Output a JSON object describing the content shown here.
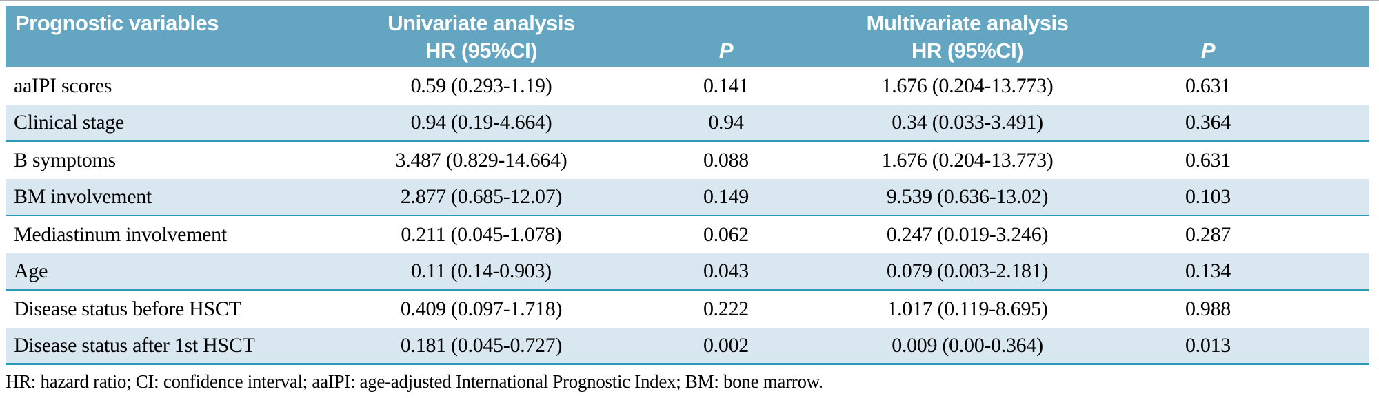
{
  "table": {
    "header": {
      "variables": "Prognostic variables",
      "univariate": "Univariate analysis",
      "multivariate": "Multivariate analysis",
      "hr": "HR (95%CI)",
      "p": "P"
    },
    "rows": [
      {
        "variable": "aaIPI scores",
        "uni_hr": "0.59 (0.293-1.19)",
        "uni_p": "0.141",
        "multi_hr": "1.676 (0.204-13.773)",
        "multi_p": "0.631"
      },
      {
        "variable": "Clinical stage",
        "uni_hr": "0.94 (0.19-4.664)",
        "uni_p": "0.94",
        "multi_hr": "0.34 (0.033-3.491)",
        "multi_p": "0.364"
      },
      {
        "variable": "B symptoms",
        "uni_hr": "3.487 (0.829-14.664)",
        "uni_p": "0.088",
        "multi_hr": "1.676 (0.204-13.773)",
        "multi_p": "0.631"
      },
      {
        "variable": "BM involvement",
        "uni_hr": "2.877 (0.685-12.07)",
        "uni_p": "0.149",
        "multi_hr": "9.539 (0.636-13.02)",
        "multi_p": "0.103"
      },
      {
        "variable": "Mediastinum involvement",
        "uni_hr": "0.211 (0.045-1.078)",
        "uni_p": "0.062",
        "multi_hr": "0.247 (0.019-3.246)",
        "multi_p": "0.287"
      },
      {
        "variable": "Age",
        "uni_hr": "0.11 (0.14-0.903)",
        "uni_p": "0.043",
        "multi_hr": "0.079 (0.003-2.181)",
        "multi_p": "0.134"
      },
      {
        "variable": "Disease status before HSCT",
        "uni_hr": "0.409 (0.097-1.718)",
        "uni_p": "0.222",
        "multi_hr": "1.017 (0.119-8.695)",
        "multi_p": "0.988"
      },
      {
        "variable": "Disease status after 1st HSCT",
        "uni_hr": "0.181 (0.045-0.727)",
        "uni_p": "0.002",
        "multi_hr": "0.009 (0.00-0.364)",
        "multi_p": "0.013"
      }
    ],
    "footnote": "HR: hazard ratio; CI: confidence interval; aaIPI: age-adjusted International Prognostic Index; BM: bone marrow.",
    "colors": {
      "header_bg": "#64a5c2",
      "row_alt_bg": "#d9e8f0",
      "rule_teal": "#2b9ab9",
      "header_text": "#ffffff",
      "body_text": "#000000"
    }
  }
}
